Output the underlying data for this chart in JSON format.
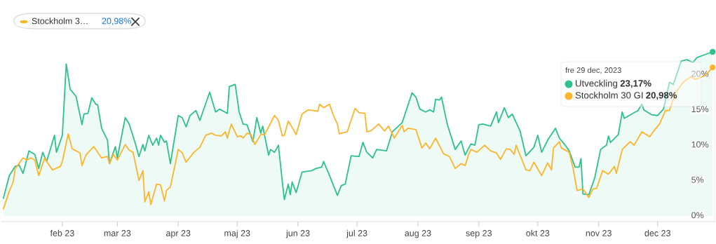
{
  "chart_data": {
    "type": "line",
    "xlim": [
      "2023-01-01",
      "2023-12-30"
    ],
    "xticks": [
      {
        "value": "2023-02-01",
        "label": "feb 23"
      },
      {
        "value": "2023-03-01",
        "label": "mar 23"
      },
      {
        "value": "2023-04-01",
        "label": "apr 23"
      },
      {
        "value": "2023-05-01",
        "label": "maj 23"
      },
      {
        "value": "2023-06-01",
        "label": "jun 23"
      },
      {
        "value": "2023-07-01",
        "label": "jul 23"
      },
      {
        "value": "2023-08-01",
        "label": "aug 23"
      },
      {
        "value": "2023-09-01",
        "label": "sep 23"
      },
      {
        "value": "2023-10-01",
        "label": "okt 23"
      },
      {
        "value": "2023-11-01",
        "label": "nov 23"
      },
      {
        "value": "2023-12-01",
        "label": "dec 23"
      }
    ],
    "ylim": [
      -0.8,
      23.6
    ],
    "yticks": [
      {
        "value": 0,
        "label": "0%"
      },
      {
        "value": 5,
        "label": "5%"
      },
      {
        "value": 10,
        "label": "10%"
      },
      {
        "value": 15,
        "label": "15%"
      },
      {
        "value": 20,
        "label": "20%"
      }
    ],
    "grid": false,
    "legend": "top right",
    "marker": "none",
    "line_style": "solid",
    "annotations": [
      "Stockholm 3…",
      "20,98%",
      "fre 29 dec, 2023",
      "23,17%",
      "20,98%"
    ],
    "series": [
      {
        "name": "Utveckling",
        "type": "area",
        "color": "#2cc28a",
        "x": [
          "2023-01-02",
          "2023-01-05",
          "2023-01-08",
          "2023-01-10",
          "2023-01-12",
          "2023-01-15",
          "2023-01-18",
          "2023-01-20",
          "2023-01-22",
          "2023-01-24",
          "2023-01-28",
          "2023-01-29",
          "2023-02-01",
          "2023-02-03",
          "2023-02-05",
          "2023-02-08",
          "2023-02-11",
          "2023-02-12",
          "2023-02-14",
          "2023-02-16",
          "2023-02-18",
          "2023-02-19",
          "2023-02-21",
          "2023-02-24",
          "2023-02-25",
          "2023-02-28",
          "2023-03-01",
          "2023-03-05",
          "2023-03-07",
          "2023-03-10",
          "2023-03-12",
          "2023-03-14",
          "2023-03-15",
          "2023-03-17",
          "2023-03-19",
          "2023-03-21",
          "2023-03-22",
          "2023-03-23",
          "2023-03-25",
          "2023-03-26",
          "2023-03-28",
          "2023-04-01",
          "2023-04-03",
          "2023-04-05",
          "2023-04-07",
          "2023-04-10",
          "2023-04-12",
          "2023-04-17",
          "2023-04-20",
          "2023-04-22",
          "2023-04-26",
          "2023-04-27",
          "2023-04-30",
          "2023-05-02",
          "2023-05-04",
          "2023-05-06",
          "2023-05-09",
          "2023-05-11",
          "2023-05-13",
          "2023-05-14",
          "2023-05-17",
          "2023-05-18",
          "2023-05-20",
          "2023-05-22",
          "2023-05-24",
          "2023-05-25",
          "2023-05-27",
          "2023-05-28",
          "2023-05-29",
          "2023-05-31",
          "2023-06-03",
          "2023-06-08",
          "2023-06-10",
          "2023-06-13",
          "2023-06-14",
          "2023-06-17",
          "2023-06-21",
          "2023-06-23",
          "2023-06-25",
          "2023-06-28",
          "2023-07-02",
          "2023-07-04",
          "2023-07-06",
          "2023-07-09",
          "2023-07-11",
          "2023-07-16",
          "2023-07-19",
          "2023-07-24",
          "2023-07-29",
          "2023-07-31",
          "2023-08-02",
          "2023-08-05",
          "2023-08-07",
          "2023-08-09",
          "2023-08-10",
          "2023-08-12",
          "2023-08-13",
          "2023-08-16",
          "2023-08-20",
          "2023-08-23",
          "2023-08-25",
          "2023-08-28",
          "2023-08-30",
          "2023-09-01",
          "2023-09-03",
          "2023-09-07",
          "2023-09-10",
          "2023-09-11",
          "2023-09-14",
          "2023-09-16",
          "2023-09-18",
          "2023-09-22",
          "2023-09-25",
          "2023-09-29",
          "2023-10-01",
          "2023-10-03",
          "2023-10-06",
          "2023-10-10",
          "2023-10-12",
          "2023-10-15",
          "2023-10-17",
          "2023-10-20",
          "2023-10-22",
          "2023-10-23",
          "2023-10-24",
          "2023-10-27",
          "2023-10-30",
          "2023-11-02",
          "2023-11-05",
          "2023-11-06",
          "2023-11-07",
          "2023-11-11",
          "2023-11-13",
          "2023-11-14",
          "2023-11-19",
          "2023-11-21",
          "2023-11-23",
          "2023-11-24",
          "2023-11-28",
          "2023-12-01",
          "2023-12-04",
          "2023-12-07",
          "2023-12-09",
          "2023-12-13",
          "2023-12-16",
          "2023-12-19",
          "2023-12-21",
          "2023-12-25",
          "2023-12-29"
        ],
        "values": [
          2.5,
          5.7,
          7.0,
          7.2,
          6.0,
          9.2,
          8.7,
          6.7,
          9.0,
          7.7,
          11.4,
          9.0,
          11.4,
          21.5,
          17.9,
          16.9,
          12.9,
          14.4,
          14.5,
          16.7,
          15.8,
          15.7,
          12.4,
          10.7,
          7.4,
          9.8,
          8.2,
          13.9,
          13.0,
          10.4,
          8.4,
          10.1,
          9.2,
          11.4,
          10.0,
          11.0,
          10.0,
          11.4,
          10.4,
          10.6,
          7.4,
          14.2,
          13.9,
          12.6,
          14.2,
          14.9,
          13.5,
          17.5,
          14.7,
          15.1,
          14.5,
          18.3,
          18.6,
          14.7,
          13.0,
          12.9,
          10.5,
          13.9,
          11.7,
          12.7,
          8.6,
          9.4,
          9.0,
          10.0,
          4.8,
          2.3,
          4.5,
          3.0,
          4.8,
          3.3,
          6.2,
          6.4,
          6.7,
          6.9,
          7.7,
          5.7,
          2.9,
          4.3,
          4.5,
          8.5,
          8.4,
          10.4,
          9.0,
          8.2,
          9.4,
          9.2,
          11.9,
          13.2,
          17.4,
          16.8,
          15.1,
          14.7,
          15.0,
          14.7,
          16.5,
          16.4,
          16.8,
          12.9,
          9.4,
          10.6,
          8.6,
          10.2,
          10.0,
          12.9,
          13.0,
          12.7,
          14.7,
          13.2,
          15.3,
          13.9,
          14.4,
          12.0,
          8.5,
          9.7,
          11.4,
          9.0,
          10.7,
          12.4,
          11.0,
          10.0,
          9.2,
          6.9,
          6.9,
          8.1,
          3.1,
          3.0,
          5.4,
          9.4,
          10.0,
          11.3,
          10.4,
          11.5,
          14.7,
          13.8,
          14.6,
          14.9,
          15.8,
          15.0,
          14.3,
          14.2,
          15.1,
          18.9,
          18.6,
          21.9,
          22.1,
          21.7,
          22.4,
          22.8,
          23.2
        ]
      },
      {
        "name": "Stockholm 30 GI",
        "color": "#ffb52b",
        "x": [
          "2023-01-02",
          "2023-01-05",
          "2023-01-07",
          "2023-01-08",
          "2023-01-12",
          "2023-01-14",
          "2023-01-16",
          "2023-01-18",
          "2023-01-20",
          "2023-01-23",
          "2023-01-24",
          "2023-01-27",
          "2023-01-31",
          "2023-02-01",
          "2023-02-04",
          "2023-02-06",
          "2023-02-10",
          "2023-02-11",
          "2023-02-13",
          "2023-02-17",
          "2023-02-21",
          "2023-02-24",
          "2023-02-25",
          "2023-02-27",
          "2023-03-01",
          "2023-03-05",
          "2023-03-07",
          "2023-03-09",
          "2023-03-12",
          "2023-03-14",
          "2023-03-15",
          "2023-03-17",
          "2023-03-18",
          "2023-03-21",
          "2023-03-23",
          "2023-03-25",
          "2023-03-26",
          "2023-03-28",
          "2023-04-01",
          "2023-04-03",
          "2023-04-05",
          "2023-04-09",
          "2023-04-12",
          "2023-04-15",
          "2023-04-18",
          "2023-04-20",
          "2023-04-23",
          "2023-04-25",
          "2023-04-26",
          "2023-04-28",
          "2023-05-01",
          "2023-05-03",
          "2023-05-04",
          "2023-05-06",
          "2023-05-08",
          "2023-05-10",
          "2023-05-13",
          "2023-05-15",
          "2023-05-20",
          "2023-05-22",
          "2023-05-24",
          "2023-05-25",
          "2023-05-27",
          "2023-05-29",
          "2023-05-31",
          "2023-06-03",
          "2023-06-06",
          "2023-06-11",
          "2023-06-12",
          "2023-06-14",
          "2023-06-17",
          "2023-06-19",
          "2023-06-21",
          "2023-06-22",
          "2023-06-26",
          "2023-06-30",
          "2023-07-02",
          "2023-07-05",
          "2023-07-06",
          "2023-07-08",
          "2023-07-12",
          "2023-07-15",
          "2023-07-17",
          "2023-07-20",
          "2023-07-24",
          "2023-07-25",
          "2023-07-27",
          "2023-07-31",
          "2023-08-03",
          "2023-08-05",
          "2023-08-07",
          "2023-08-10",
          "2023-08-14",
          "2023-08-17",
          "2023-08-20",
          "2023-08-23",
          "2023-08-25",
          "2023-08-27",
          "2023-08-28",
          "2023-08-31",
          "2023-09-04",
          "2023-09-07",
          "2023-09-10",
          "2023-09-12",
          "2023-09-15",
          "2023-09-17",
          "2023-09-19",
          "2023-09-20",
          "2023-09-25",
          "2023-09-27",
          "2023-09-29",
          "2023-10-03",
          "2023-10-06",
          "2023-10-08",
          "2023-10-09",
          "2023-10-12",
          "2023-10-13",
          "2023-10-17",
          "2023-10-19",
          "2023-10-21",
          "2023-10-24",
          "2023-10-27",
          "2023-10-29",
          "2023-10-31",
          "2023-11-03",
          "2023-11-06",
          "2023-11-09",
          "2023-11-10",
          "2023-11-13",
          "2023-11-17",
          "2023-11-19",
          "2023-11-23",
          "2023-11-27",
          "2023-11-29",
          "2023-12-02",
          "2023-12-05",
          "2023-12-07",
          "2023-12-10",
          "2023-12-14",
          "2023-12-18",
          "2023-12-20",
          "2023-12-25",
          "2023-12-29"
        ],
        "values": [
          1.0,
          3.5,
          4.8,
          6.7,
          8.2,
          7.9,
          8.2,
          7.9,
          5.7,
          8.2,
          7.7,
          6.5,
          7.0,
          7.7,
          11.6,
          9.5,
          8.9,
          7.1,
          8.6,
          9.8,
          8.2,
          8.4,
          7.4,
          8.7,
          7.9,
          10.1,
          9.3,
          9.0,
          5.0,
          6.4,
          2.0,
          3.4,
          1.6,
          4.5,
          4.4,
          2.1,
          3.6,
          4.1,
          9.4,
          8.9,
          7.6,
          9.0,
          9.7,
          11.4,
          11.7,
          11.4,
          11.3,
          11.9,
          11.0,
          13.0,
          11.2,
          11.3,
          11.0,
          11.7,
          11.5,
          10.1,
          11.5,
          11.5,
          14.2,
          13.5,
          11.3,
          11.4,
          13.4,
          12.5,
          11.5,
          14.4,
          15.0,
          14.8,
          15.8,
          15.3,
          15.8,
          14.2,
          13.0,
          11.6,
          11.9,
          15.2,
          14.6,
          14.5,
          11.9,
          12.0,
          13.0,
          12.0,
          12.7,
          11.0,
          12.8,
          11.9,
          12.4,
          12.2,
          9.6,
          10.3,
          9.5,
          11.0,
          8.8,
          8.4,
          6.7,
          7.4,
          7.1,
          8.8,
          9.4,
          9.0,
          10.0,
          9.2,
          8.9,
          8.0,
          9.5,
          9.4,
          8.7,
          10.0,
          6.5,
          6.4,
          7.6,
          5.7,
          7.5,
          6.5,
          9.6,
          10.5,
          9.6,
          9.0,
          6.7,
          3.6,
          3.8,
          2.6,
          3.8,
          3.9,
          6.4,
          5.9,
          7.0,
          6.0,
          9.4,
          10.5,
          10.0,
          11.9,
          11.2,
          12.0,
          13.0,
          14.9,
          14.9,
          17.3,
          18.9,
          19.7,
          19.3,
          19.8,
          21.0
        ]
      }
    ]
  }
}
